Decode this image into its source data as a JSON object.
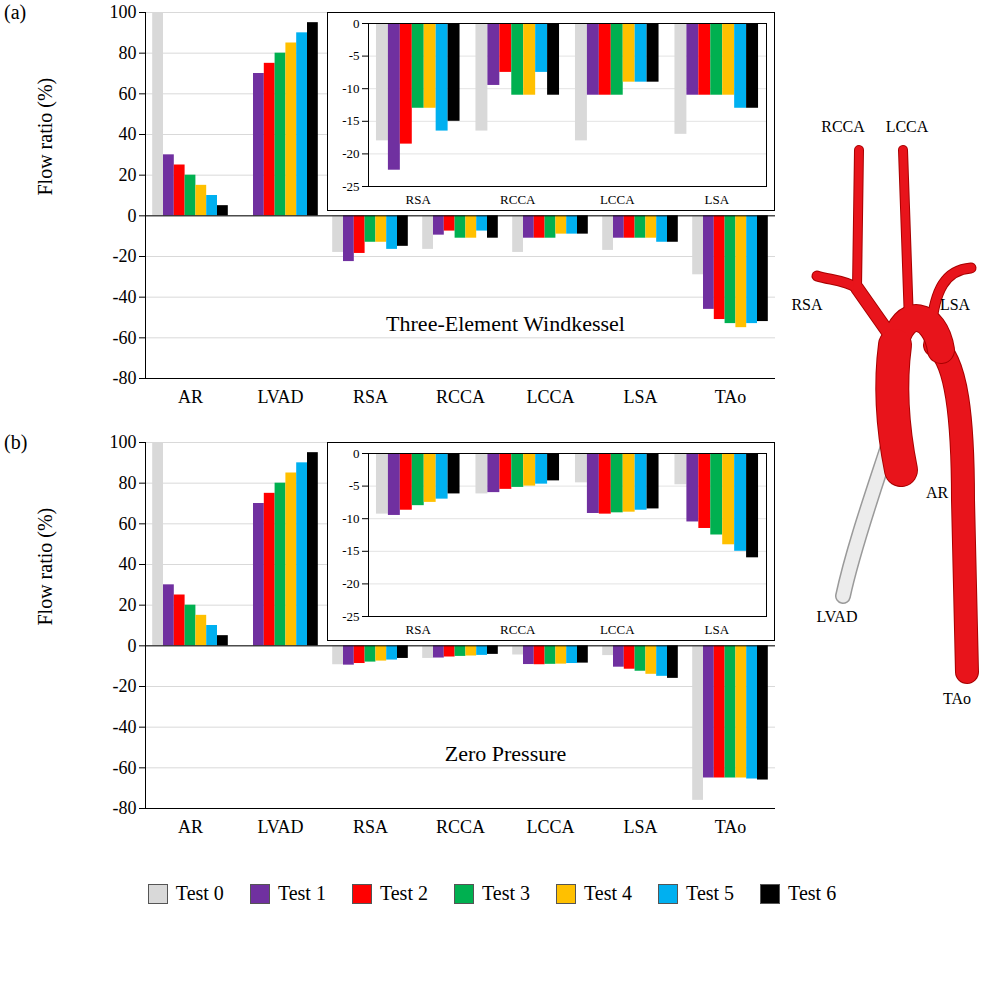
{
  "chart_data": [
    {
      "type": "bar",
      "panel": "(a)",
      "title": "Three-Element Windkessel",
      "ylabel": "Flow ratio (%)",
      "categories": [
        "AR",
        "LVAD",
        "RSA",
        "RCCA",
        "LCCA",
        "LSA",
        "TAo"
      ],
      "series": [
        {
          "name": "Test 0",
          "color": "#d9d9d9",
          "values": [
            100,
            0,
            -18,
            -16.5,
            -18,
            -17,
            -29
          ]
        },
        {
          "name": "Test 1",
          "color": "#7030a0",
          "values": [
            30,
            70,
            -22.5,
            -9.5,
            -11,
            -11,
            -46
          ]
        },
        {
          "name": "Test 2",
          "color": "#ff0000",
          "values": [
            25,
            75,
            -18.5,
            -7.5,
            -11,
            -11,
            -51
          ]
        },
        {
          "name": "Test 3",
          "color": "#00b050",
          "values": [
            20,
            80,
            -13,
            -11,
            -11,
            -11,
            -53
          ]
        },
        {
          "name": "Test 4",
          "color": "#ffc000",
          "values": [
            15,
            85,
            -13,
            -11,
            -9,
            -11,
            -55
          ]
        },
        {
          "name": "Test 5",
          "color": "#00b0f0",
          "values": [
            10,
            90,
            -16.5,
            -7.5,
            -9,
            -13,
            -53
          ]
        },
        {
          "name": "Test 6",
          "color": "#000000",
          "values": [
            5,
            95,
            -15,
            -11,
            -9,
            -13,
            -52
          ]
        }
      ],
      "ylim": [
        -80,
        100
      ],
      "yticks": [
        -80,
        -60,
        -40,
        -20,
        0,
        20,
        40,
        60,
        80,
        100
      ],
      "grid": true,
      "legend": "bottom",
      "inset": {
        "type": "bar",
        "categories": [
          "RSA",
          "RCCA",
          "LCCA",
          "LSA"
        ],
        "series": [
          {
            "name": "Test 0",
            "color": "#d9d9d9",
            "values": [
              -18,
              -16.5,
              -18,
              -17
            ]
          },
          {
            "name": "Test 1",
            "color": "#7030a0",
            "values": [
              -22.5,
              -9.5,
              -11,
              -11
            ]
          },
          {
            "name": "Test 2",
            "color": "#ff0000",
            "values": [
              -18.5,
              -7.5,
              -11,
              -11
            ]
          },
          {
            "name": "Test 3",
            "color": "#00b050",
            "values": [
              -13,
              -11,
              -11,
              -11
            ]
          },
          {
            "name": "Test 4",
            "color": "#ffc000",
            "values": [
              -13,
              -11,
              -9,
              -11
            ]
          },
          {
            "name": "Test 5",
            "color": "#00b0f0",
            "values": [
              -16.5,
              -7.5,
              -9,
              -13
            ]
          },
          {
            "name": "Test 6",
            "color": "#000000",
            "values": [
              -15,
              -11,
              -9,
              -13
            ]
          }
        ],
        "ylim": [
          -25,
          0
        ],
        "yticks": [
          -25,
          -20,
          -15,
          -10,
          -5,
          0
        ],
        "grid": true
      }
    },
    {
      "type": "bar",
      "panel": "(b)",
      "title": "Zero Pressure",
      "ylabel": "Flow ratio (%)",
      "categories": [
        "AR",
        "LVAD",
        "RSA",
        "RCCA",
        "LCCA",
        "LSA",
        "TAo"
      ],
      "series": [
        {
          "name": "Test 0",
          "color": "#d9d9d9",
          "values": [
            100,
            0,
            -9.3,
            -6.2,
            -4.5,
            -4.8,
            -76
          ]
        },
        {
          "name": "Test 1",
          "color": "#7030a0",
          "values": [
            30,
            70,
            -9.5,
            -6,
            -9.2,
            -10.5,
            -65
          ]
        },
        {
          "name": "Test 2",
          "color": "#ff0000",
          "values": [
            25,
            75,
            -8.7,
            -5.5,
            -9.3,
            -11.5,
            -65
          ]
        },
        {
          "name": "Test 3",
          "color": "#00b050",
          "values": [
            20,
            80,
            -8,
            -5.2,
            -9.1,
            -12.5,
            -65
          ]
        },
        {
          "name": "Test 4",
          "color": "#ffc000",
          "values": [
            15,
            85,
            -7.5,
            -5,
            -9,
            -14,
            -65
          ]
        },
        {
          "name": "Test 5",
          "color": "#00b0f0",
          "values": [
            10,
            90,
            -7,
            -4.7,
            -8.7,
            -15,
            -65.5
          ]
        },
        {
          "name": "Test 6",
          "color": "#000000",
          "values": [
            5,
            95,
            -6.2,
            -4.2,
            -8.5,
            -16,
            -66
          ]
        }
      ],
      "ylim": [
        -80,
        100
      ],
      "yticks": [
        -80,
        -60,
        -40,
        -20,
        0,
        20,
        40,
        60,
        80,
        100
      ],
      "grid": true,
      "inset": {
        "type": "bar",
        "categories": [
          "RSA",
          "RCCA",
          "LCCA",
          "LSA"
        ],
        "series": [
          {
            "name": "Test 0",
            "color": "#d9d9d9",
            "values": [
              -9.3,
              -6.2,
              -4.5,
              -4.8
            ]
          },
          {
            "name": "Test 1",
            "color": "#7030a0",
            "values": [
              -9.5,
              -6,
              -9.2,
              -10.5
            ]
          },
          {
            "name": "Test 2",
            "color": "#ff0000",
            "values": [
              -8.7,
              -5.5,
              -9.3,
              -11.5
            ]
          },
          {
            "name": "Test 3",
            "color": "#00b050",
            "values": [
              -8,
              -5.2,
              -9.1,
              -12.5
            ]
          },
          {
            "name": "Test 4",
            "color": "#ffc000",
            "values": [
              -7.5,
              -5,
              -9,
              -14
            ]
          },
          {
            "name": "Test 5",
            "color": "#00b0f0",
            "values": [
              -7,
              -4.7,
              -8.7,
              -15
            ]
          },
          {
            "name": "Test 6",
            "color": "#000000",
            "values": [
              -6.2,
              -4.2,
              -8.5,
              -16
            ]
          }
        ],
        "ylim": [
          -25,
          0
        ],
        "yticks": [
          -25,
          -20,
          -15,
          -10,
          -5,
          0
        ],
        "grid": true
      }
    }
  ],
  "diagram": {
    "labels": [
      "RCCA",
      "LCCA",
      "RSA",
      "LSA",
      "AR",
      "LVAD",
      "TAo"
    ]
  }
}
